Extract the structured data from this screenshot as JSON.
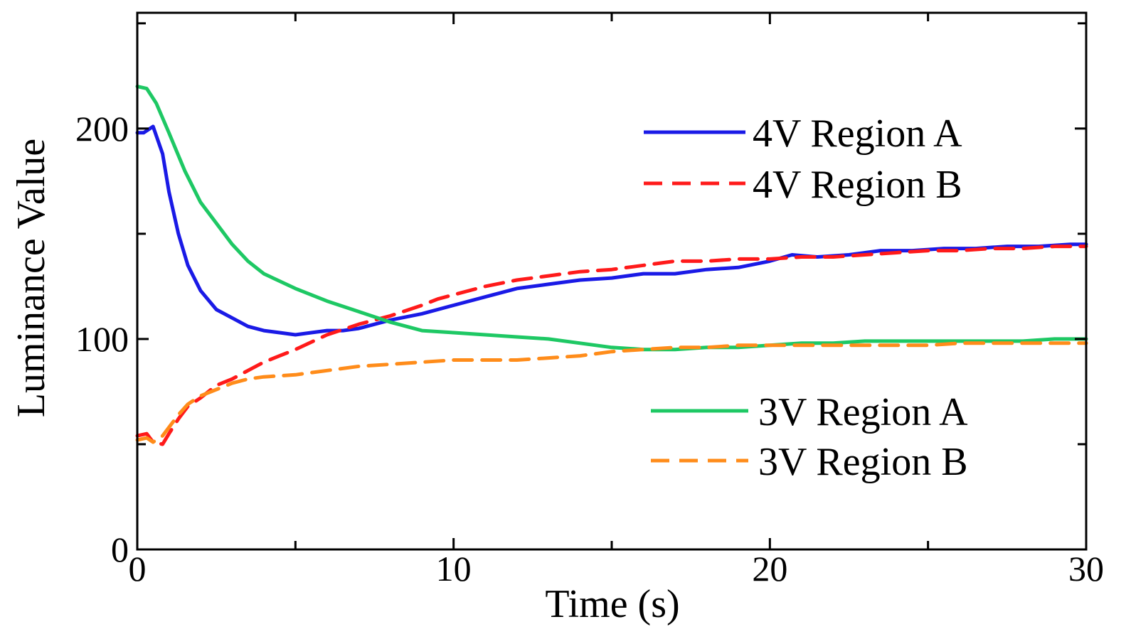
{
  "chart_data": {
    "type": "line",
    "title": "",
    "xlabel": "Time (s)",
    "ylabel": "Luminance Value",
    "xlim": [
      0,
      30
    ],
    "ylim": [
      0,
      255
    ],
    "xticks": [
      0,
      10,
      20,
      30
    ],
    "yticks": [
      0,
      100,
      200
    ],
    "xtick_labels": [
      "0",
      "10",
      "20",
      "30"
    ],
    "ytick_labels": [
      "0",
      "100",
      "200"
    ],
    "grid": false,
    "legend": [
      {
        "name": "4V Region A",
        "group": "top"
      },
      {
        "name": "4V Region B",
        "group": "top"
      },
      {
        "name": "3V Region A",
        "group": "bottom"
      },
      {
        "name": "3V Region B",
        "group": "bottom"
      }
    ],
    "series": [
      {
        "name": "4V Region A",
        "color": "#1a1ae6",
        "dash": "solid",
        "x": [
          0,
          0.2,
          0.5,
          0.8,
          1.0,
          1.3,
          1.6,
          2.0,
          2.5,
          3.0,
          3.5,
          4.0,
          4.5,
          5.0,
          5.5,
          6.0,
          6.5,
          7.0,
          8.0,
          9.0,
          10.0,
          11.0,
          12.0,
          13.0,
          14.0,
          15.0,
          16.0,
          17.0,
          18.0,
          19.0,
          20.0,
          20.7,
          21.5,
          22.5,
          23.5,
          24.5,
          25.5,
          26.5,
          27.5,
          28.5,
          29.5,
          30.0
        ],
        "values": [
          198,
          198,
          201,
          188,
          170,
          150,
          135,
          123,
          114,
          110,
          106,
          104,
          103,
          102,
          103,
          104,
          104,
          105,
          109,
          112,
          116,
          120,
          124,
          126,
          128,
          129,
          131,
          131,
          133,
          134,
          137,
          140,
          139,
          140,
          142,
          142,
          143,
          143,
          144,
          144,
          145,
          145
        ]
      },
      {
        "name": "4V Region B",
        "color": "#ff1a1a",
        "dash": "dashed",
        "x": [
          0,
          0.3,
          0.5,
          0.8,
          1.0,
          1.3,
          1.6,
          2.0,
          2.5,
          3.0,
          3.5,
          4.0,
          4.5,
          5.0,
          6.0,
          7.0,
          8.0,
          9.0,
          9.5,
          10.0,
          11.0,
          12.0,
          13.0,
          14.0,
          15.0,
          16.0,
          17.0,
          18.0,
          19.0,
          20.0,
          21.0,
          22.0,
          23.0,
          24.0,
          25.0,
          26.0,
          27.0,
          28.0,
          29.0,
          30.0
        ],
        "values": [
          54,
          55,
          51,
          50,
          55,
          62,
          68,
          72,
          78,
          81,
          85,
          89,
          92,
          95,
          102,
          107,
          111,
          116,
          119,
          121,
          125,
          128,
          130,
          132,
          133,
          135,
          137,
          137,
          138,
          138,
          139,
          139,
          140,
          141,
          142,
          142,
          143,
          143,
          144,
          144
        ]
      },
      {
        "name": "3V Region A",
        "color": "#1ec864",
        "dash": "solid",
        "x": [
          0,
          0.3,
          0.6,
          1.0,
          1.5,
          2.0,
          2.5,
          3.0,
          3.5,
          4.0,
          5.0,
          6.0,
          7.0,
          8.0,
          9.0,
          10.0,
          11.0,
          12.0,
          13.0,
          14.0,
          15.0,
          16.0,
          17.0,
          18.0,
          19.0,
          20.0,
          21.0,
          22.0,
          23.0,
          24.0,
          25.0,
          26.0,
          27.0,
          28.0,
          29.0,
          30.0
        ],
        "values": [
          220,
          219,
          212,
          198,
          180,
          165,
          155,
          145,
          137,
          131,
          124,
          118,
          113,
          108,
          104,
          103,
          102,
          101,
          100,
          98,
          96,
          95,
          95,
          96,
          96,
          97,
          98,
          98,
          99,
          99,
          99,
          99,
          99,
          99,
          100,
          100
        ]
      },
      {
        "name": "3V Region B",
        "color": "#ff8c1a",
        "dash": "dashed",
        "x": [
          0,
          0.3,
          0.5,
          0.8,
          1.0,
          1.3,
          1.6,
          2.0,
          2.5,
          3.0,
          3.5,
          4.0,
          5.0,
          6.0,
          7.0,
          8.0,
          9.0,
          10.0,
          11.0,
          12.0,
          13.0,
          14.0,
          15.0,
          16.0,
          17.0,
          18.0,
          19.0,
          20.0,
          21.0,
          22.0,
          23.0,
          24.0,
          25.0,
          26.0,
          27.0,
          28.0,
          29.0,
          30.0
        ],
        "values": [
          52,
          53,
          51,
          54,
          58,
          64,
          69,
          73,
          76,
          79,
          81,
          82,
          83,
          85,
          87,
          88,
          89,
          90,
          90,
          90,
          91,
          92,
          94,
          95,
          96,
          96,
          97,
          97,
          97,
          97,
          97,
          97,
          97,
          98,
          98,
          98,
          98,
          98
        ]
      }
    ]
  }
}
